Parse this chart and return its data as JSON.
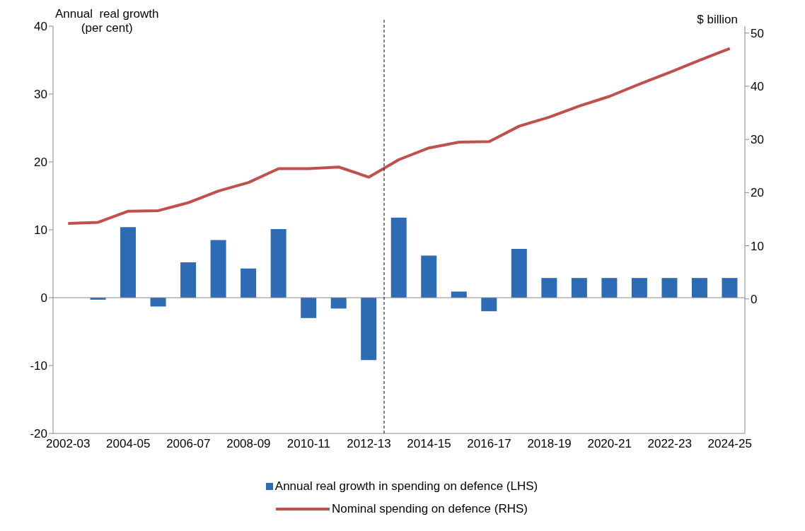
{
  "chart_data": {
    "type": "bar",
    "ylabel": "Annual  real growth\n(per cent)",
    "y2label": "$ billion",
    "categories": [
      "2002-03",
      null,
      "2004-05",
      null,
      "2006-07",
      null,
      "2008-09",
      null,
      "2010-11",
      null,
      "2012-13",
      null,
      "2014-15",
      null,
      "2016-17",
      null,
      "2018-19",
      null,
      "2020-21",
      null,
      "2022-23",
      null,
      "2024-25"
    ],
    "series": [
      {
        "name": "Annual real growth in spending on defence (LHS)",
        "color": "#2e6bb5",
        "values": [
          null,
          -0.3,
          10.4,
          -1.3,
          5.2,
          8.5,
          4.3,
          10.1,
          -3.0,
          -1.6,
          -9.2,
          11.8,
          6.2,
          0.9,
          -2.0,
          7.2,
          2.9,
          2.9,
          2.9,
          2.9,
          2.9,
          2.9,
          2.9
        ]
      },
      {
        "name": "Nominal spending on defence (RHS)",
        "type": "line",
        "axis": "y2",
        "color": "#c0504d",
        "values": [
          14.2,
          14.4,
          16.5,
          16.6,
          18.1,
          20.3,
          21.9,
          24.5,
          24.5,
          24.8,
          22.9,
          26.2,
          28.4,
          29.5,
          29.6,
          32.5,
          34.2,
          36.3,
          38.1,
          40.4,
          42.6,
          44.9,
          47.1
        ]
      }
    ],
    "ylim": [
      -20,
      40
    ],
    "yticks": [
      -20,
      -10,
      0,
      10,
      20,
      30,
      40
    ],
    "y2lim": [
      -25.3,
      51.3
    ],
    "y2ticks": [
      0,
      10,
      20,
      30,
      40,
      50
    ],
    "ref_lines": [
      {
        "axis": "x",
        "value": "2012-13",
        "color": "#000000",
        "line_style": "dashed"
      }
    ],
    "grid": false,
    "legend": "bottom",
    "marker": "none",
    "line_style": "solid"
  }
}
